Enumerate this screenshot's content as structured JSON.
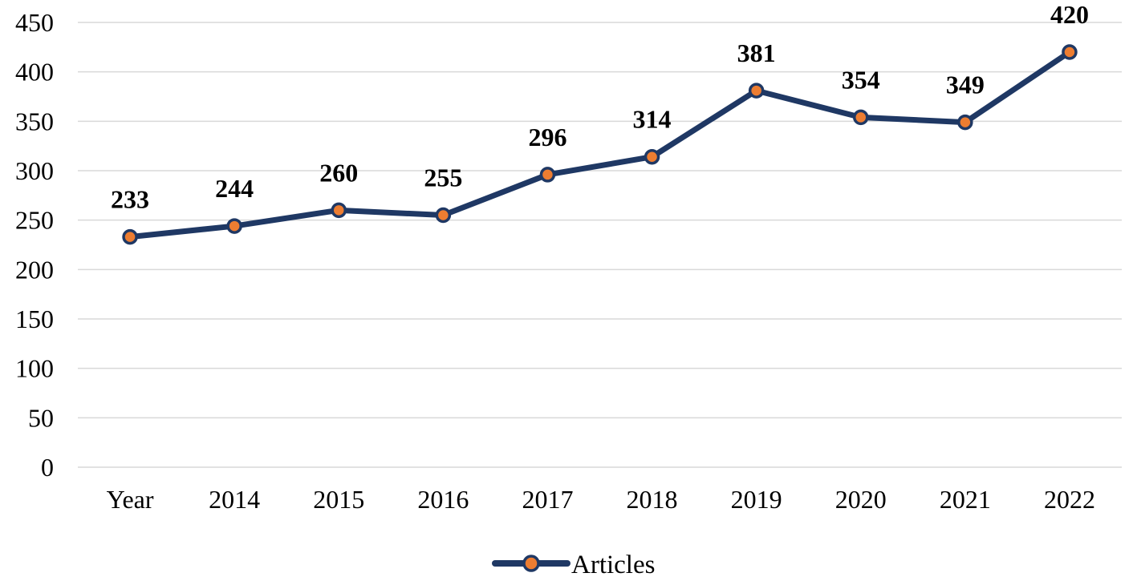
{
  "chart_data": {
    "type": "line",
    "title": "",
    "xlabel": "",
    "ylabel": "",
    "categories": [
      "Year",
      "2014",
      "2015",
      "2016",
      "2017",
      "2018",
      "2019",
      "2020",
      "2021",
      "2022"
    ],
    "series": [
      {
        "name": "Articles",
        "values": [
          233,
          244,
          260,
          255,
          296,
          314,
          381,
          354,
          349,
          420
        ]
      }
    ],
    "data_labels": [
      233,
      244,
      260,
      255,
      296,
      314,
      381,
      354,
      349,
      420
    ],
    "ylim": [
      0,
      450
    ],
    "yticks": [
      0,
      50,
      100,
      150,
      200,
      250,
      300,
      350,
      400,
      450
    ],
    "grid": "horizontal",
    "legend_position": "bottom-center",
    "legend_entries": [
      "Articles"
    ],
    "colors": {
      "line": "#1f3864",
      "marker_fill": "#ed7d31",
      "marker_stroke": "#1f3864",
      "gridline": "#d9d9d9",
      "text": "#000000",
      "background": "#ffffff"
    }
  }
}
